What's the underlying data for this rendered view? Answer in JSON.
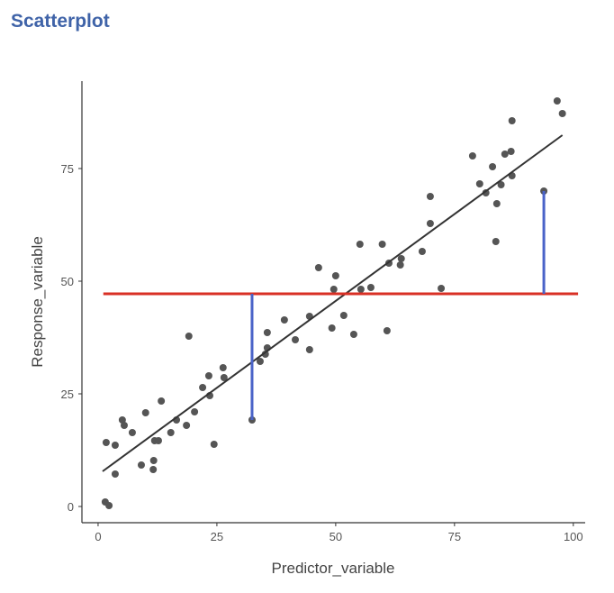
{
  "chart_data": {
    "type": "scatter",
    "title": "Scatterplot",
    "xlabel": "Predictor_variable",
    "ylabel": "Response_variable",
    "xlim": [
      -3.4,
      102.5
    ],
    "ylim": [
      -3.6,
      94.4
    ],
    "xticks": [
      0,
      25,
      50,
      75,
      100
    ],
    "yticks": [
      0,
      25,
      50,
      75
    ],
    "grid": false,
    "point_color": "#555555",
    "points": [
      [
        1.5,
        1.0
      ],
      [
        2.3,
        0.2
      ],
      [
        1.7,
        14.2
      ],
      [
        3.6,
        13.6
      ],
      [
        3.6,
        7.2
      ],
      [
        5.1,
        19.2
      ],
      [
        5.5,
        18.0
      ],
      [
        7.2,
        16.4
      ],
      [
        9.1,
        9.2
      ],
      [
        10.0,
        20.8
      ],
      [
        11.6,
        8.2
      ],
      [
        11.9,
        14.6
      ],
      [
        12.7,
        14.6
      ],
      [
        13.3,
        23.4
      ],
      [
        11.7,
        10.2
      ],
      [
        15.3,
        16.4
      ],
      [
        16.5,
        19.2
      ],
      [
        18.6,
        18.0
      ],
      [
        19.1,
        37.8
      ],
      [
        20.3,
        21.0
      ],
      [
        22.0,
        26.4
      ],
      [
        23.3,
        29.0
      ],
      [
        23.5,
        24.6
      ],
      [
        24.4,
        13.8
      ],
      [
        26.3,
        30.8
      ],
      [
        26.5,
        28.6
      ],
      [
        32.4,
        19.2
      ],
      [
        34.1,
        32.2
      ],
      [
        35.2,
        33.8
      ],
      [
        35.6,
        38.6
      ],
      [
        35.6,
        35.2
      ],
      [
        39.2,
        41.4
      ],
      [
        41.5,
        37.0
      ],
      [
        44.5,
        42.2
      ],
      [
        44.5,
        34.8
      ],
      [
        46.4,
        53.0
      ],
      [
        49.2,
        39.6
      ],
      [
        49.6,
        48.2
      ],
      [
        50.0,
        51.2
      ],
      [
        51.7,
        42.4
      ],
      [
        53.8,
        38.2
      ],
      [
        55.1,
        58.2
      ],
      [
        55.3,
        48.2
      ],
      [
        57.4,
        48.6
      ],
      [
        59.8,
        58.2
      ],
      [
        60.8,
        39.0
      ],
      [
        61.2,
        54.0
      ],
      [
        63.6,
        53.6
      ],
      [
        63.8,
        55.0
      ],
      [
        68.2,
        56.6
      ],
      [
        69.9,
        68.8
      ],
      [
        69.9,
        62.8
      ],
      [
        72.2,
        48.4
      ],
      [
        78.8,
        77.8
      ],
      [
        80.3,
        71.6
      ],
      [
        81.6,
        69.6
      ],
      [
        83.0,
        75.4
      ],
      [
        83.9,
        67.2
      ],
      [
        83.7,
        58.8
      ],
      [
        84.8,
        71.4
      ],
      [
        85.6,
        78.2
      ],
      [
        87.1,
        73.4
      ],
      [
        86.9,
        78.8
      ],
      [
        87.1,
        85.6
      ],
      [
        93.8,
        70.0
      ],
      [
        96.6,
        90.0
      ],
      [
        97.7,
        87.2
      ]
    ],
    "regression_line": {
      "from": [
        0.95,
        7.8
      ],
      "to": [
        97.7,
        82.4
      ],
      "color": "#333333"
    },
    "mean_line": {
      "y": 47.2,
      "x_from": 1.1,
      "x_to": 101,
      "color": "#d93025"
    },
    "residual_segments": {
      "color": "#4a63c8",
      "segments": [
        {
          "x": 32.4,
          "y_from": 19.2,
          "y_to": 47.2
        },
        {
          "x": 93.8,
          "y_from": 70.0,
          "y_to": 47.2
        }
      ]
    }
  }
}
